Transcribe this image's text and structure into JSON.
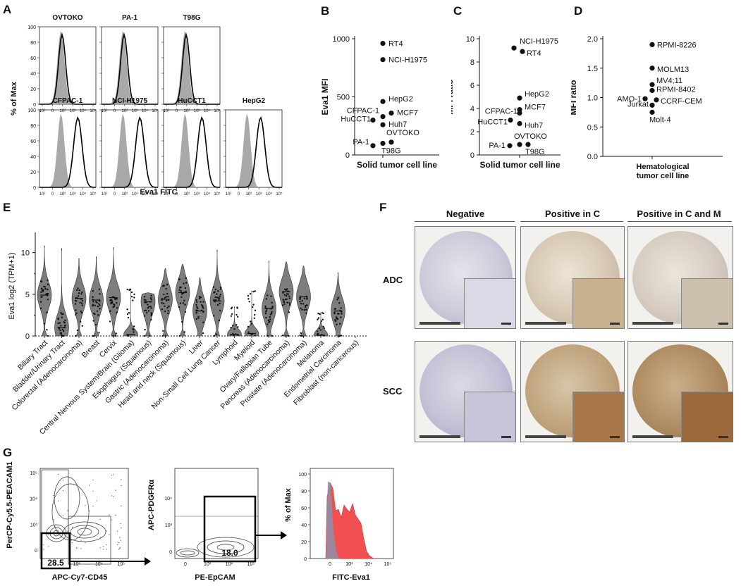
{
  "panels": {
    "A": "A",
    "B": "B",
    "C": "C",
    "D": "D",
    "E": "E",
    "F": "F",
    "G": "G"
  },
  "panelA": {
    "ylabel": "% of Max",
    "xlabel": "Eva1 FITC",
    "yticks": [
      "0",
      "20",
      "40",
      "60",
      "80",
      "100"
    ],
    "xticks": [
      "10²",
      "0",
      "10²",
      "10³",
      "10⁴",
      "10⁵"
    ],
    "top_row": [
      "OVTOKO",
      "PA-1",
      "T98G"
    ],
    "bottom_row": [
      "CFPAC-1",
      "NCI-H1975",
      "HuCCT1",
      "HepG2"
    ]
  },
  "chart_data": [
    {
      "panel": "B",
      "type": "scatter",
      "ylabel": "Eva1 MFI",
      "xlabel": "Solid tumor cell line",
      "ylim": [
        0,
        1000
      ],
      "yticks": [
        "0",
        "500",
        "1000"
      ],
      "points": [
        {
          "label": "RT4",
          "y": 960
        },
        {
          "label": "NCI-H1975",
          "y": 820
        },
        {
          "label": "HepG2",
          "y": 460
        },
        {
          "label": "MCF7",
          "y": 360
        },
        {
          "label": "CFPAC-1",
          "y": 330
        },
        {
          "label": "HuCCT1",
          "y": 300
        },
        {
          "label": "Huh7",
          "y": 260
        },
        {
          "label": "OVTOKO",
          "y": 110
        },
        {
          "label": "PA-1",
          "y": 80
        },
        {
          "label": "T98G",
          "y": 100
        }
      ]
    },
    {
      "panel": "C",
      "type": "scatter",
      "ylabel": "MFI ratio",
      "xlabel": "Solid tumor cell line",
      "ylim": [
        0,
        10
      ],
      "yticks": [
        "0",
        "2",
        "4",
        "6",
        "8",
        "10"
      ],
      "points": [
        {
          "label": "NCI-H1975",
          "y": 9.2
        },
        {
          "label": "RT4",
          "y": 8.9
        },
        {
          "label": "HepG2",
          "y": 4.9
        },
        {
          "label": "MCF7",
          "y": 3.9
        },
        {
          "label": "CFPAC-1",
          "y": 3.6
        },
        {
          "label": "HuCCT1",
          "y": 3.0
        },
        {
          "label": "Huh7",
          "y": 2.7
        },
        {
          "label": "OVTOKO",
          "y": 0.9
        },
        {
          "label": "PA-1",
          "y": 0.8
        },
        {
          "label": "T98G",
          "y": 0.9
        }
      ]
    },
    {
      "panel": "D",
      "type": "scatter",
      "ylabel": "MFI ratio",
      "xlabel": "Hematological tumor cell line",
      "ylim": [
        0,
        2
      ],
      "yticks": [
        "0.0",
        "0.5",
        "1.0",
        "1.5",
        "2.0"
      ],
      "points": [
        {
          "label": "RPMI-8226",
          "y": 1.9
        },
        {
          "label": "MOLM13",
          "y": 1.5
        },
        {
          "label": "MV4;11",
          "y": 1.22
        },
        {
          "label": "RPMI-8402",
          "y": 1.12
        },
        {
          "label": "AMO-1",
          "y": 0.98
        },
        {
          "label": "CCRF-CEM",
          "y": 0.96
        },
        {
          "label": "Jurkat",
          "y": 0.87
        },
        {
          "label": "Molt-4",
          "y": 0.75
        }
      ]
    },
    {
      "panel": "E",
      "type": "violin",
      "ylabel": "Eva1 log2 (TPM+1)",
      "ylim": [
        0,
        12
      ],
      "yticks": [
        "0",
        "5",
        "10"
      ],
      "categories": [
        "Biliary Tract",
        "Bladder/Urinary Tract",
        "Colorectal (Adenocarcinoma)",
        "Breast",
        "Cervix",
        "Central Nervous System/Brain (Glioma)",
        "Esophagus (Squamous)",
        "Gastric (Adenocarcinoma)",
        "Head and neck (Squamous)",
        "Liver",
        "Non-Small Cell Lung Cancer",
        "Lymphoid",
        "Myeloid",
        "Ovary/Fallopian Tube",
        "Pancreas (Adenocarcinoma)",
        "Prostate (Adenocarcinoma)",
        "Melanoma",
        "Endometrial Carcinoma",
        "Fibroblast (non-cancerous)"
      ],
      "medians": [
        4.9,
        1.0,
        4.5,
        4.3,
        4.6,
        0.2,
        4.1,
        4.4,
        5.2,
        3.0,
        4.2,
        0.2,
        0.3,
        3.3,
        5.3,
        4.7,
        0.1,
        3.0,
        0.0
      ],
      "maxima": [
        10.8,
        10.5,
        9.3,
        9.5,
        10.6,
        5.6,
        5.2,
        8.1,
        8.6,
        7.0,
        10.3,
        3.5,
        5.4,
        9.0,
        8.9,
        8.4,
        2.8,
        7.6,
        0.0
      ]
    }
  ],
  "panelF": {
    "columns": [
      "Negative",
      "Positive in C",
      "Positive in C and M"
    ],
    "rows": [
      "ADC",
      "SCC"
    ]
  },
  "panelG": {
    "plot1": {
      "ylabel": "PerCP-Cy5.5-PEACAM1",
      "xlabel": "APC-Cy7-CD45",
      "gate": "28.5",
      "yticks": [
        "10⁵",
        "10⁴",
        "10³",
        "0"
      ],
      "xticks": [
        "0",
        "10³",
        "10⁴",
        "10⁵"
      ]
    },
    "plot2": {
      "ylabel": "APC-PDGFRα",
      "xlabel": "PE-EpCAM",
      "gate": "18.0",
      "yticks": [
        "10⁴",
        "10³",
        "0"
      ],
      "xticks": [
        "0",
        "10³",
        "10⁴",
        "10⁵"
      ]
    },
    "plot3": {
      "ylabel": "% of Max",
      "xlabel": "FITC-Eva1",
      "yticks": [
        "0",
        "20",
        "40",
        "60",
        "80",
        "100"
      ],
      "xticks": [
        "0",
        "10³",
        "10⁴",
        "10⁵"
      ]
    }
  }
}
